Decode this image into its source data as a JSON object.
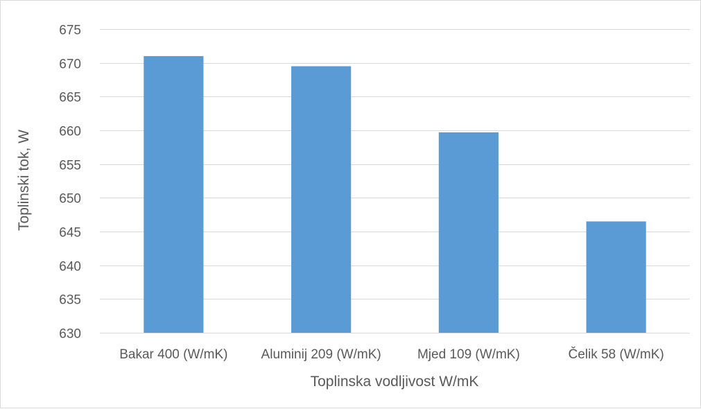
{
  "chart_data": {
    "type": "bar",
    "title": "",
    "xlabel": "Toplinska vodljivost W/mK",
    "ylabel": "Toplinski tok, W",
    "categories": [
      "Bakar 400 (W/mK)",
      "Aluminij 209 (W/mK)",
      "Mjed 109 (W/mK)",
      "Čelik 58 (W/mK)"
    ],
    "values": [
      671.0,
      669.5,
      659.7,
      646.5
    ],
    "ylim": [
      630,
      675
    ],
    "yticks": [
      630,
      635,
      640,
      645,
      650,
      655,
      660,
      665,
      670,
      675
    ],
    "grid": true,
    "legend": "none",
    "bar_color": "#5b9bd5",
    "grid_color": "#d9d9d9",
    "text_color": "#595959"
  }
}
